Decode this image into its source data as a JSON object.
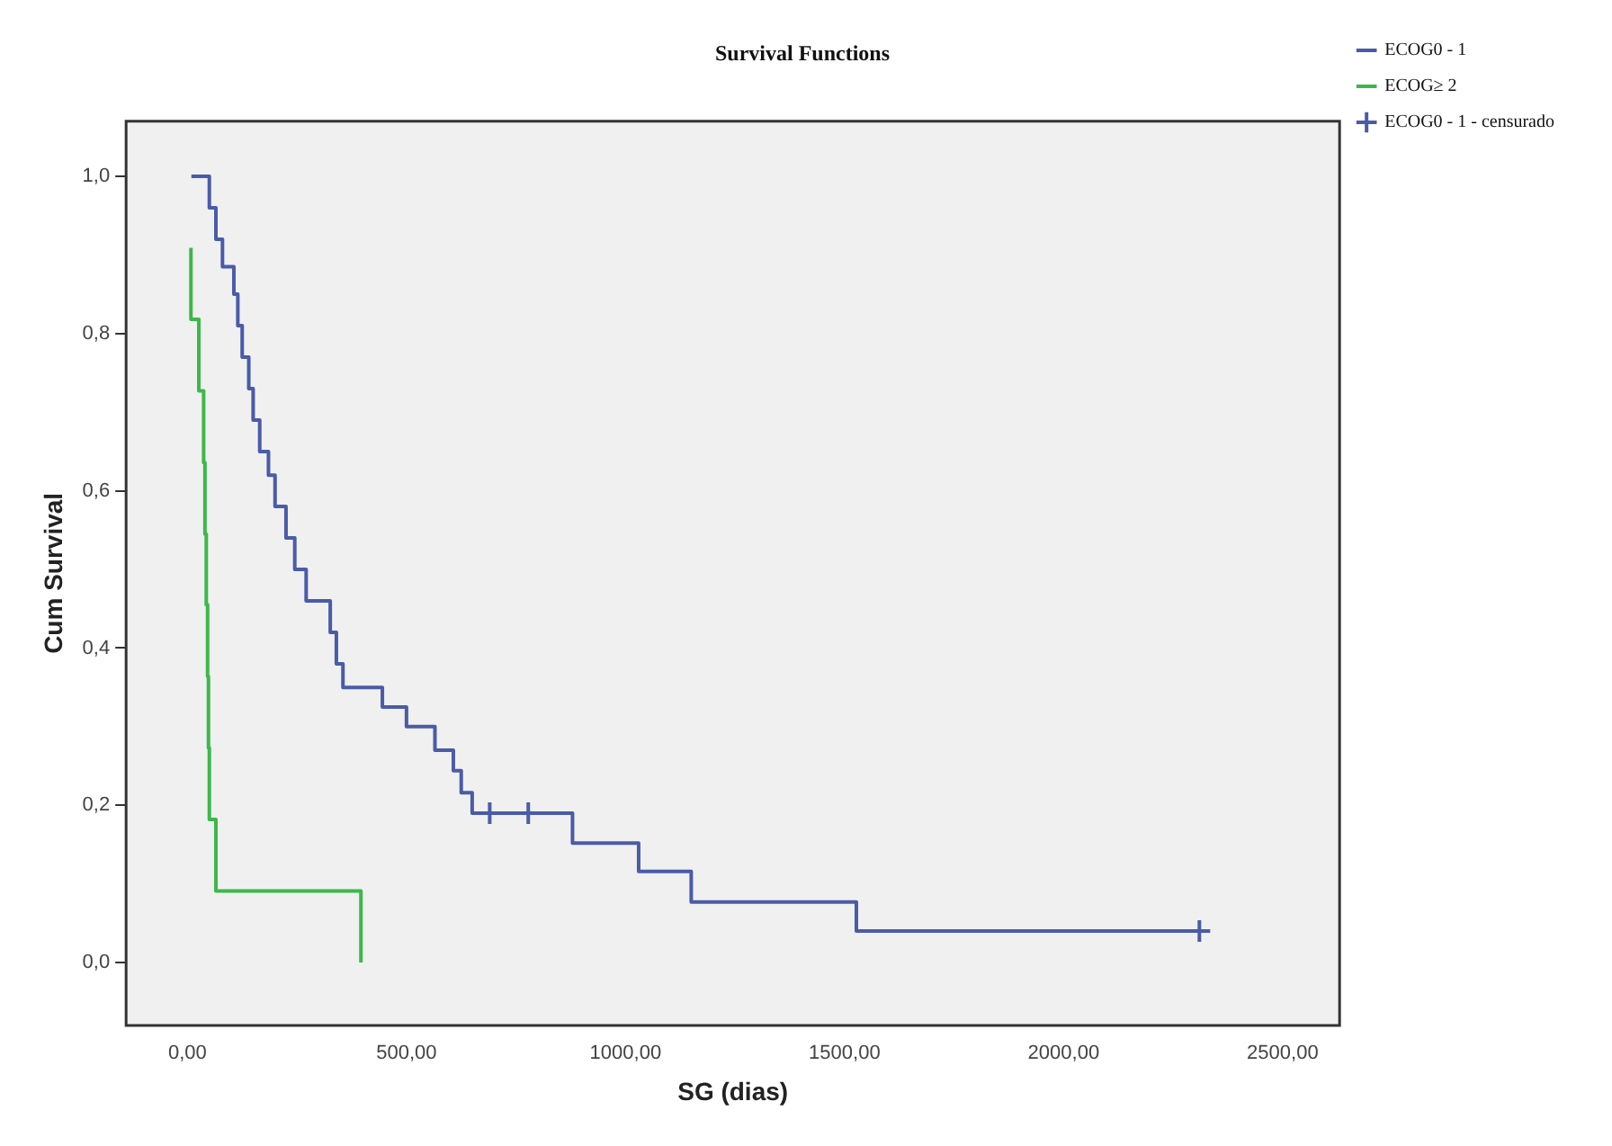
{
  "chart_data": {
    "type": "step",
    "title": "Survival Functions",
    "xlabel": "SG (dias)",
    "ylabel": "Cum Survival",
    "xlim": [
      -140,
      2630
    ],
    "ylim": [
      -0.08,
      1.07
    ],
    "xticks": [
      {
        "value": 0,
        "label": "0,00"
      },
      {
        "value": 500,
        "label": "500,00"
      },
      {
        "value": 1000,
        "label": "1000,00"
      },
      {
        "value": 1500,
        "label": "1500,00"
      },
      {
        "value": 2000,
        "label": "2000,00"
      },
      {
        "value": 2500,
        "label": "2500,00"
      }
    ],
    "yticks": [
      {
        "value": 0,
        "label": "0,0"
      },
      {
        "value": 0.2,
        "label": "0,2"
      },
      {
        "value": 0.4,
        "label": "0,4"
      },
      {
        "value": 0.6,
        "label": "0,6"
      },
      {
        "value": 0.8,
        "label": "0,8"
      },
      {
        "value": 1,
        "label": "1,0"
      }
    ],
    "grid": false,
    "legend": "top right",
    "series": [
      {
        "name": "ECOG0 - 1",
        "type": "step",
        "color": "#4a5ba8",
        "x": [
          9,
          50,
          65,
          80,
          106,
          115,
          125,
          140,
          150,
          165,
          185,
          200,
          225,
          245,
          271,
          326,
          340,
          355,
          445,
          500,
          565,
          607,
          625,
          650,
          879,
          1030,
          1150,
          1527,
          2310
        ],
        "values": [
          1,
          0.96,
          0.92,
          0.885,
          0.85,
          0.81,
          0.77,
          0.73,
          0.69,
          0.65,
          0.62,
          0.58,
          0.54,
          0.5,
          0.46,
          0.42,
          0.38,
          0.35,
          0.325,
          0.3,
          0.27,
          0.244,
          0.216,
          0.19,
          0.152,
          0.116,
          0.077,
          0.04,
          0.04
        ]
      },
      {
        "name": "ECOG≥ 2",
        "type": "step",
        "color": "#3cb84a",
        "x": [
          8,
          8,
          26,
          37,
          40,
          43,
          46,
          48,
          50,
          65,
          396
        ],
        "values": [
          0.909,
          0.818,
          0.727,
          0.636,
          0.545,
          0.455,
          0.364,
          0.273,
          0.182,
          0.091,
          0
        ]
      },
      {
        "name": "ECOG0 - 1 - censurado",
        "type": "scatter",
        "marker": "cross",
        "color": "#4a5ba8",
        "x": [
          690,
          778,
          2310
        ],
        "values": [
          0.19,
          0.19,
          0.04
        ]
      }
    ]
  }
}
